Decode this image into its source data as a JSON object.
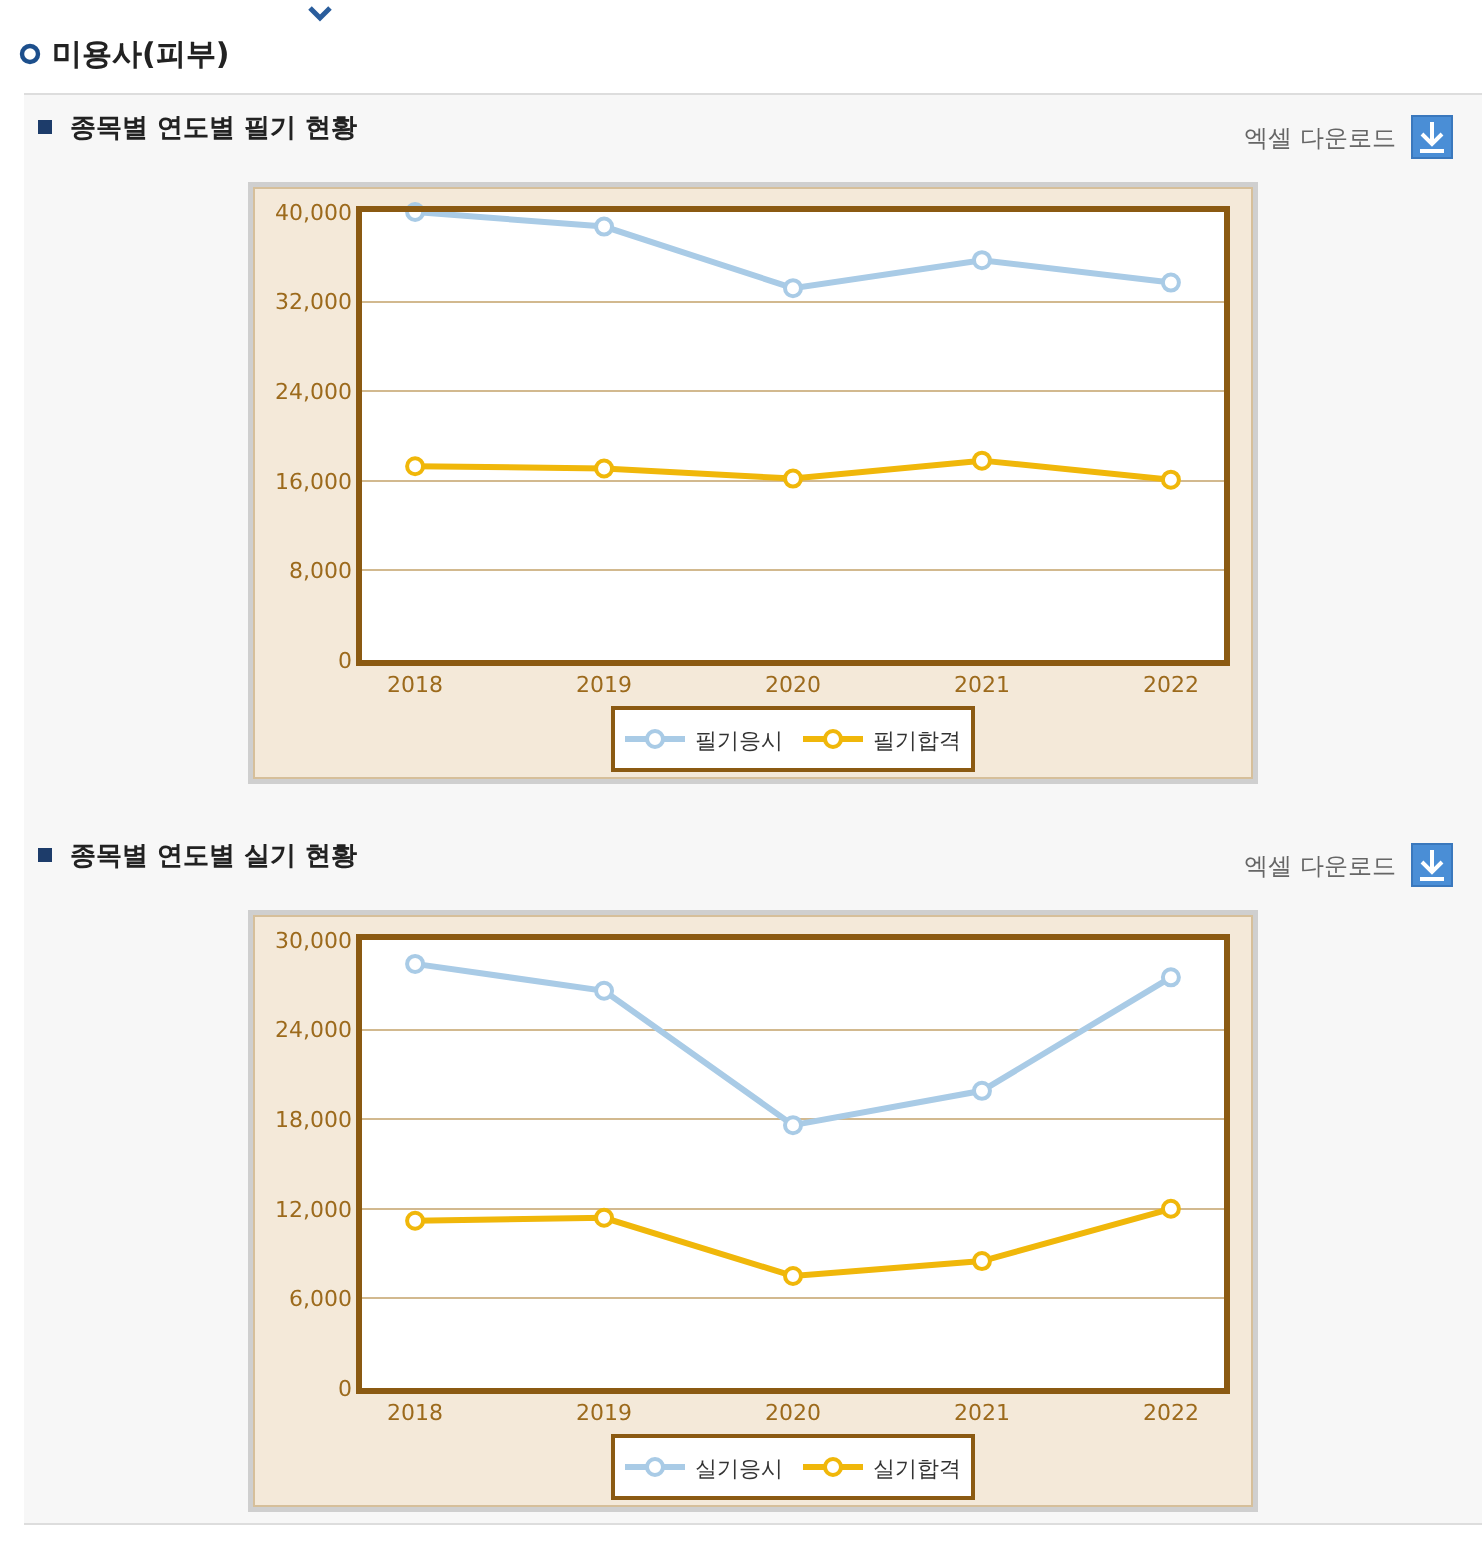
{
  "chart_data": [
    {
      "type": "line",
      "title": "종목별 연도별 필기 현황",
      "annotations": [
        "미용사(피부)",
        "엑셀 다운로드"
      ],
      "categories": [
        "2018",
        "2019",
        "2020",
        "2021",
        "2022"
      ],
      "series": [
        {
          "name": "필기응시",
          "color": "#a9cbe6",
          "values": [
            40000,
            38700,
            33200,
            35700,
            33700
          ]
        },
        {
          "name": "필기합격",
          "color": "#f0b70a",
          "values": [
            17300,
            17100,
            16200,
            17800,
            16100
          ]
        }
      ],
      "ylim": [
        0,
        40000
      ],
      "yticks": [
        0,
        {
          "value": 8000,
          "label": "8,000"
        },
        {
          "value": 16000,
          "label": "16,000"
        },
        {
          "value": 24000,
          "label": "24,000"
        },
        {
          "value": 32000,
          "label": "32,000"
        },
        {
          "value": 40000,
          "label": "40,000"
        }
      ],
      "grid": "y",
      "legend": "bottom",
      "marker": "circle",
      "line_style": "solid"
    },
    {
      "type": "line",
      "title": "종목별 연도별 실기 현황",
      "annotations": [
        "엑셀 다운로드"
      ],
      "categories": [
        "2018",
        "2019",
        "2020",
        "2021",
        "2022"
      ],
      "series": [
        {
          "name": "실기응시",
          "color": "#a9cbe6",
          "values": [
            28400,
            26600,
            17600,
            19900,
            27500
          ]
        },
        {
          "name": "실기합격",
          "color": "#f0b70a",
          "values": [
            11200,
            11400,
            7500,
            8500,
            12000
          ]
        }
      ],
      "ylim": [
        0,
        30000
      ],
      "yticks": [
        0,
        {
          "value": 6000,
          "label": "6,000"
        },
        {
          "value": 12000,
          "label": "12,000"
        },
        {
          "value": 18000,
          "label": "18,000"
        },
        {
          "value": 24000,
          "label": "24,000"
        },
        {
          "value": 30000,
          "label": "30,000"
        }
      ],
      "grid": "y",
      "legend": "bottom",
      "marker": "circle",
      "line_style": "solid"
    }
  ]
}
